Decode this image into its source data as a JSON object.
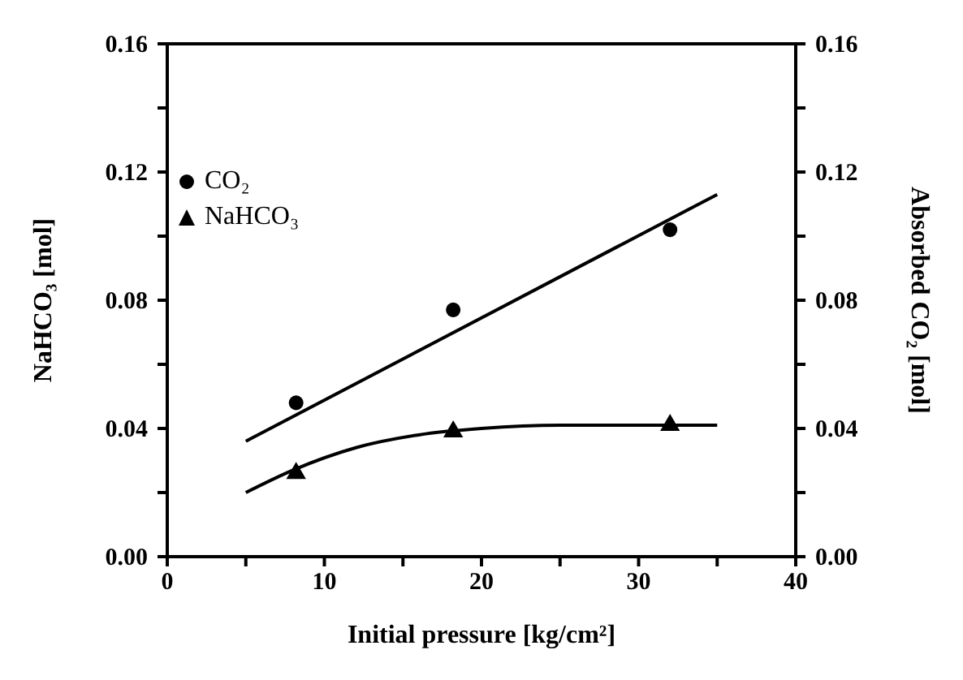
{
  "chart_data": {
    "type": "scatter",
    "xlabel": "Initial pressure [kg/cm²]",
    "ylabel": "NaHCO₃ [mol]",
    "y2label": "Absorbed CO₂ [mol]",
    "xlim": [
      0,
      40
    ],
    "xticks": [
      0,
      {
        "value": 5,
        "label": null
      },
      10,
      {
        "value": 15,
        "label": null
      },
      20,
      {
        "value": 25,
        "label": null
      },
      30,
      {
        "value": 35,
        "label": null
      },
      40
    ],
    "ylim": [
      0,
      0.16
    ],
    "yticks": [
      {
        "value": 0,
        "label": "0.00"
      },
      {
        "value": 0.02,
        "label": null
      },
      {
        "value": 0.04,
        "label": "0.04"
      },
      {
        "value": 0.06,
        "label": null
      },
      {
        "value": 0.08,
        "label": "0.08"
      },
      {
        "value": 0.1,
        "label": null
      },
      {
        "value": 0.12,
        "label": "0.12"
      },
      {
        "value": 0.14,
        "label": null
      },
      {
        "value": 0.16,
        "label": "0.16"
      }
    ],
    "y2lim": [
      0,
      0.16
    ],
    "y2ticks": [
      {
        "value": 0,
        "label": "0.00"
      },
      {
        "value": 0.02,
        "label": null
      },
      {
        "value": 0.04,
        "label": "0.04"
      },
      {
        "value": 0.06,
        "label": null
      },
      {
        "value": 0.08,
        "label": "0.08"
      },
      {
        "value": 0.1,
        "label": null
      },
      {
        "value": 0.12,
        "label": "0.12"
      },
      {
        "value": 0.14,
        "label": null
      },
      {
        "value": 0.16,
        "label": "0.16"
      }
    ],
    "legend": "top left",
    "grid": false,
    "series": [
      {
        "name": "CO₂",
        "type": "scatter",
        "marker": "circle",
        "color": "#000000",
        "x": [
          8.2,
          18.2,
          32
        ],
        "values": [
          0.048,
          0.077,
          0.102
        ]
      },
      {
        "name": "NaHCO₃",
        "type": "scatter",
        "marker": "triangle",
        "color": "#000000",
        "x": [
          8.2,
          18.2,
          32
        ],
        "values": [
          0.026,
          0.039,
          0.041
        ]
      },
      {
        "type": "line",
        "color": "#000000",
        "x": [
          5,
          35
        ],
        "values": [
          0.036,
          0.113
        ]
      },
      {
        "type": "line",
        "color": "#000000",
        "x": [
          5,
          8,
          12,
          16,
          20,
          25,
          30,
          35
        ],
        "values": [
          0.02,
          0.027,
          0.034,
          0.038,
          0.04,
          0.041,
          0.041,
          0.041
        ]
      }
    ]
  }
}
